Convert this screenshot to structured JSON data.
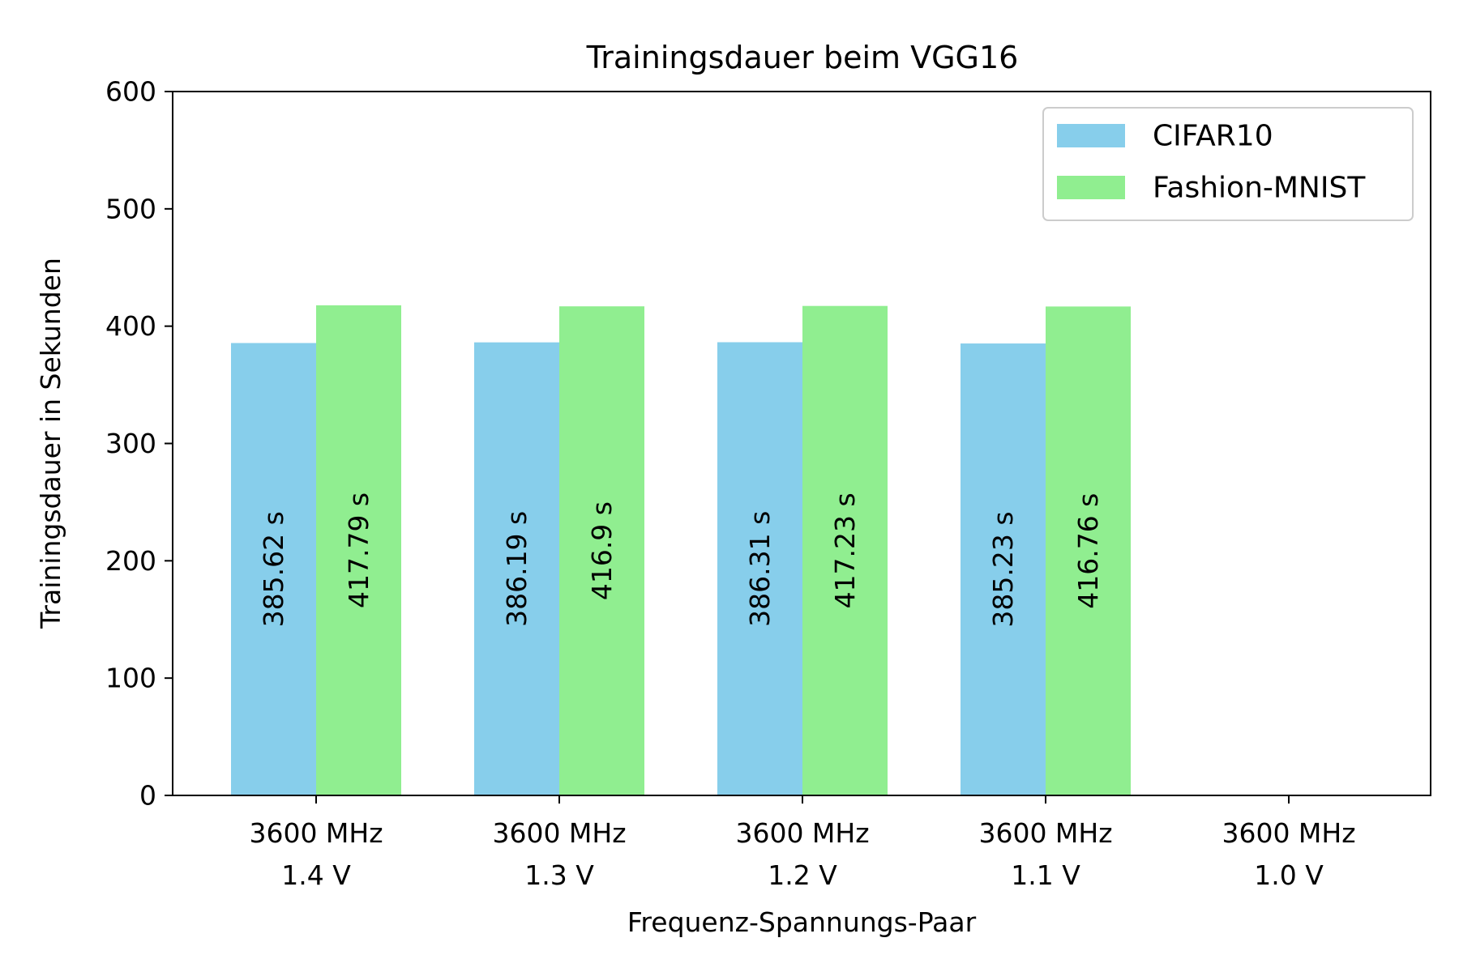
{
  "chart_data": {
    "type": "bar",
    "title": "Trainingsdauer beim VGG16",
    "xlabel": "Frequenz-Spannungs-Paar",
    "ylabel": "Trainingsdauer in Sekunden",
    "ylim": [
      0,
      600
    ],
    "yticks": [
      0,
      100,
      200,
      300,
      400,
      500,
      600
    ],
    "categories": [
      [
        "3600 MHz",
        "1.4 V"
      ],
      [
        "3600 MHz",
        "1.3 V"
      ],
      [
        "3600 MHz",
        "1.2 V"
      ],
      [
        "3600 MHz",
        "1.1 V"
      ],
      [
        "3600 MHz",
        "1.0 V"
      ]
    ],
    "series": [
      {
        "name": "CIFAR10",
        "color": "#87CEEB",
        "values": [
          385.62,
          386.19,
          386.31,
          385.23,
          null
        ],
        "labels": [
          "385.62 s",
          "386.19 s",
          "386.31 s",
          "385.23 s",
          ""
        ]
      },
      {
        "name": "Fashion-MNIST",
        "color": "#90EE90",
        "values": [
          417.79,
          416.9,
          417.23,
          416.76,
          null
        ],
        "labels": [
          "417.79 s",
          "416.9 s",
          "417.23 s",
          "416.76 s",
          ""
        ]
      }
    ],
    "legend_position": "top-right",
    "grid": false
  }
}
